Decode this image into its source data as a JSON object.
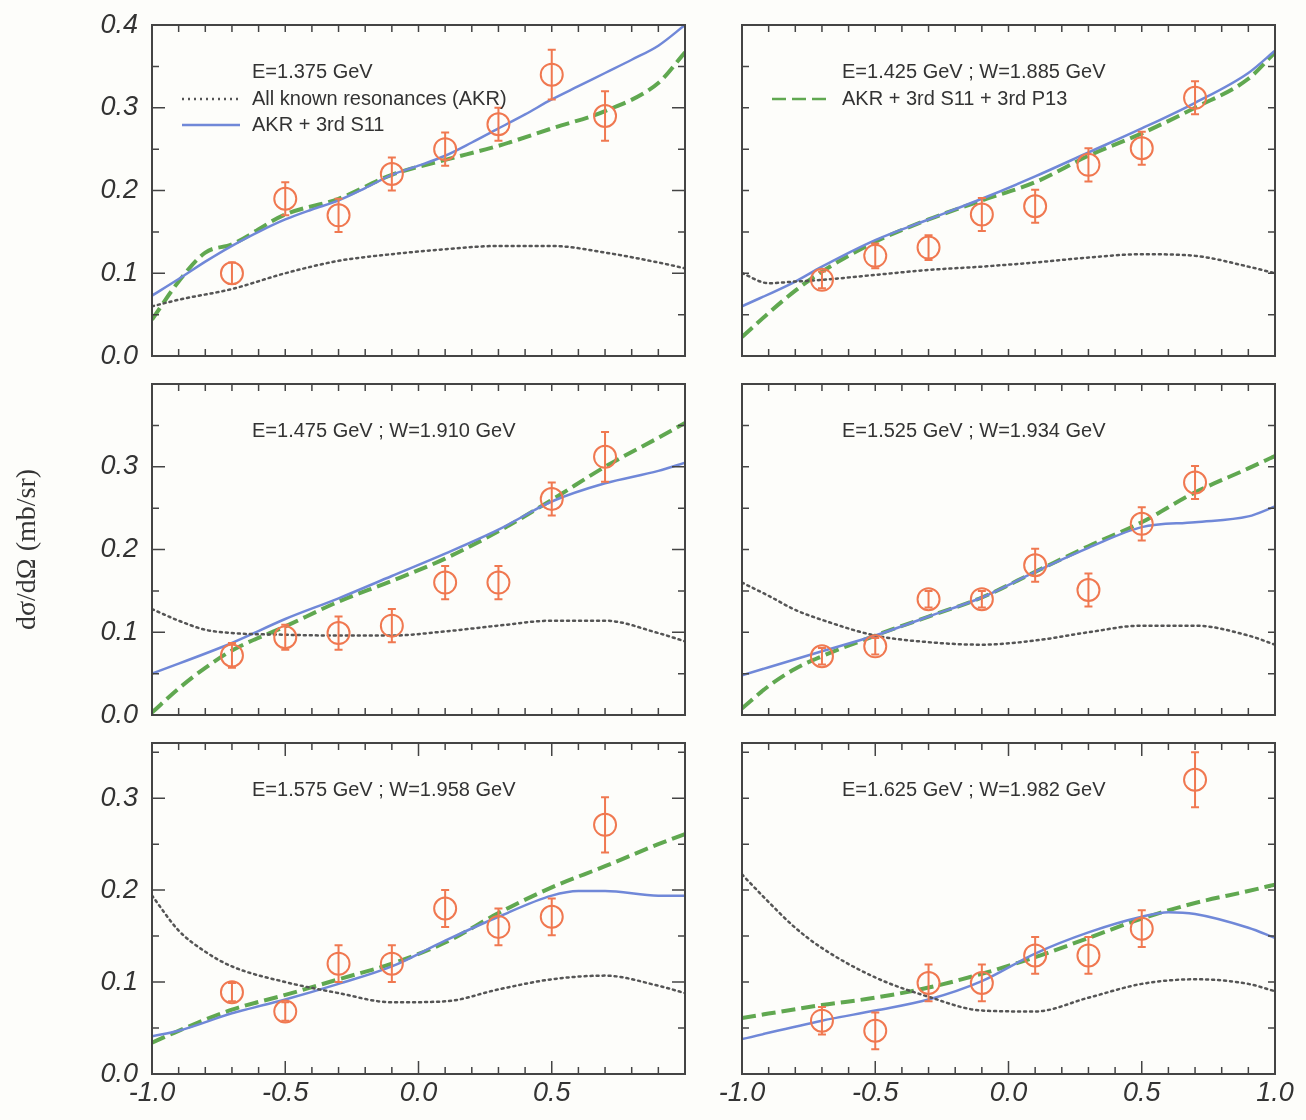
{
  "chart_data": [
    {
      "type": "line",
      "title": "E=1.375 GeV",
      "legend": "top left",
      "tick_labels": "y",
      "xlim": [
        -1,
        1
      ],
      "ylim": [
        0,
        0.4
      ],
      "xticks": [
        {
          "value": -1,
          "label": null
        },
        {
          "value": -0.9,
          "label": null
        },
        {
          "value": -0.8,
          "label": null
        },
        {
          "value": -0.7,
          "label": null
        },
        {
          "value": -0.6,
          "label": null
        },
        {
          "value": -0.5,
          "label": null
        },
        {
          "value": -0.4,
          "label": null
        },
        {
          "value": -0.3,
          "label": null
        },
        {
          "value": -0.2,
          "label": null
        },
        {
          "value": -0.1,
          "label": null
        },
        {
          "value": 0,
          "label": null
        },
        {
          "value": 0.1,
          "label": null
        },
        {
          "value": 0.2,
          "label": null
        },
        {
          "value": 0.3,
          "label": null
        },
        {
          "value": 0.4,
          "label": null
        },
        {
          "value": 0.5,
          "label": null
        },
        {
          "value": 0.6,
          "label": null
        },
        {
          "value": 0.7,
          "label": null
        },
        {
          "value": 0.8,
          "label": null
        },
        {
          "value": 0.9,
          "label": null
        },
        {
          "value": 1,
          "label": null
        }
      ],
      "yticks": [
        {
          "value": 0,
          "label": "0.0"
        },
        {
          "value": 0.05,
          "label": null
        },
        0.1,
        {
          "value": 0.15,
          "label": null
        },
        0.2,
        {
          "value": 0.25,
          "label": null
        },
        0.3,
        {
          "value": 0.35,
          "label": null
        },
        0.4
      ],
      "series": [
        {
          "type": "scatter",
          "marker": "circle",
          "color": "#f07850",
          "x": [
            -0.7,
            -0.5,
            -0.3,
            -0.1,
            0.1,
            0.3,
            0.5,
            0.7
          ],
          "values": [
            0.1,
            0.19,
            0.17,
            0.22,
            0.25,
            0.28,
            0.34,
            0.29
          ],
          "errors": [
            0.013,
            0.02,
            0.02,
            0.02,
            0.02,
            0.02,
            0.03,
            0.03
          ]
        },
        {
          "type": "line",
          "name": "All known resonances (AKR)",
          "line_style": "dotted",
          "marker": "none",
          "color": "#555555",
          "x": [
            -1,
            -0.9,
            -0.7,
            -0.5,
            -0.3,
            -0.1,
            0.1,
            0.3,
            0.5,
            0.7,
            0.9,
            1
          ],
          "values": [
            0.06,
            0.068,
            0.081,
            0.1,
            0.115,
            0.123,
            0.129,
            0.133,
            0.133,
            0.125,
            0.113,
            0.106
          ]
        },
        {
          "type": "line",
          "name": "AKR + 3rd S11",
          "line_style": "solid",
          "marker": "none",
          "color": "#7088d8",
          "x": [
            -1,
            -0.9,
            -0.8,
            -0.7,
            -0.6,
            -0.5,
            -0.4,
            -0.3,
            -0.2,
            -0.1,
            0,
            0.1,
            0.2,
            0.3,
            0.4,
            0.5,
            0.6,
            0.7,
            0.8,
            0.9,
            1
          ],
          "values": [
            0.073,
            0.093,
            0.114,
            0.133,
            0.15,
            0.165,
            0.177,
            0.188,
            0.203,
            0.219,
            0.23,
            0.242,
            0.258,
            0.275,
            0.292,
            0.31,
            0.326,
            0.342,
            0.358,
            0.375,
            0.4
          ]
        },
        {
          "type": "line",
          "line_style": "dashed",
          "marker": "none",
          "color": "#60a850",
          "x": [
            -1,
            -0.9,
            -0.8,
            -0.7,
            -0.5,
            -0.3,
            -0.1,
            0.1,
            0.3,
            0.5,
            0.7,
            0.9,
            1
          ],
          "values": [
            0.044,
            0.09,
            0.125,
            0.135,
            0.171,
            0.19,
            0.219,
            0.237,
            0.254,
            0.275,
            0.296,
            0.33,
            0.367
          ]
        }
      ]
    },
    {
      "type": "line",
      "title": "E=1.425 GeV ; W=1.885 GeV",
      "legend": "top left",
      "tick_labels": false,
      "xlim": [
        -1,
        1
      ],
      "ylim": [
        0,
        0.4
      ],
      "xticks": [
        {
          "value": -1,
          "label": null
        },
        {
          "value": -0.9,
          "label": null
        },
        {
          "value": -0.8,
          "label": null
        },
        {
          "value": -0.7,
          "label": null
        },
        {
          "value": -0.6,
          "label": null
        },
        {
          "value": -0.5,
          "label": null
        },
        {
          "value": -0.4,
          "label": null
        },
        {
          "value": -0.3,
          "label": null
        },
        {
          "value": -0.2,
          "label": null
        },
        {
          "value": -0.1,
          "label": null
        },
        {
          "value": 0,
          "label": null
        },
        {
          "value": 0.1,
          "label": null
        },
        {
          "value": 0.2,
          "label": null
        },
        {
          "value": 0.3,
          "label": null
        },
        {
          "value": 0.4,
          "label": null
        },
        {
          "value": 0.5,
          "label": null
        },
        {
          "value": 0.6,
          "label": null
        },
        {
          "value": 0.7,
          "label": null
        },
        {
          "value": 0.8,
          "label": null
        },
        {
          "value": 0.9,
          "label": null
        },
        {
          "value": 1,
          "label": null
        }
      ],
      "yticks": [
        {
          "value": 0,
          "label": null
        },
        {
          "value": 0.05,
          "label": null
        },
        {
          "value": 0.1,
          "label": null
        },
        {
          "value": 0.15,
          "label": null
        },
        {
          "value": 0.2,
          "label": null
        },
        {
          "value": 0.25,
          "label": null
        },
        {
          "value": 0.3,
          "label": null
        },
        {
          "value": 0.35,
          "label": null
        }
      ],
      "series": [
        {
          "type": "scatter",
          "marker": "circle",
          "color": "#f07850",
          "x": [
            -0.7,
            -0.5,
            -0.3,
            -0.1,
            0.1,
            0.3,
            0.5,
            0.7
          ],
          "values": [
            0.092,
            0.121,
            0.131,
            0.171,
            0.181,
            0.231,
            0.251,
            0.312
          ],
          "errors": [
            0.01,
            0.015,
            0.015,
            0.02,
            0.02,
            0.02,
            0.02,
            0.02
          ]
        },
        {
          "type": "line",
          "line_style": "dotted",
          "marker": "none",
          "color": "#555555",
          "x": [
            -1,
            -0.9,
            -0.8,
            -0.7,
            -0.5,
            -0.3,
            -0.1,
            0.1,
            0.3,
            0.5,
            0.7,
            0.9,
            1
          ],
          "values": [
            0.1,
            0.088,
            0.09,
            0.092,
            0.098,
            0.104,
            0.108,
            0.113,
            0.119,
            0.123,
            0.121,
            0.108,
            0.1
          ]
        },
        {
          "type": "line",
          "line_style": "solid",
          "marker": "none",
          "color": "#7088d8",
          "x": [
            -1,
            -0.8,
            -0.7,
            -0.5,
            -0.3,
            -0.1,
            0.1,
            0.3,
            0.5,
            0.7,
            0.9,
            1
          ],
          "values": [
            0.06,
            0.09,
            0.108,
            0.14,
            0.165,
            0.19,
            0.217,
            0.246,
            0.275,
            0.306,
            0.342,
            0.369
          ]
        },
        {
          "type": "line",
          "name": "AKR + 3rd S11 + 3rd P13",
          "line_style": "dashed",
          "marker": "none",
          "color": "#60a850",
          "x": [
            -1,
            -0.9,
            -0.8,
            -0.7,
            -0.5,
            -0.3,
            -0.1,
            0.1,
            0.3,
            0.5,
            0.7,
            0.9,
            1
          ],
          "values": [
            0.023,
            0.052,
            0.079,
            0.102,
            0.138,
            0.165,
            0.188,
            0.21,
            0.242,
            0.269,
            0.3,
            0.335,
            0.367
          ]
        }
      ]
    },
    {
      "type": "line",
      "title": "E=1.475 GeV ; W=1.910 GeV",
      "ylabel": "dσ/dΩ (mb/sr)",
      "tick_labels": "y",
      "xlim": [
        -1,
        1
      ],
      "ylim": [
        0,
        0.4
      ],
      "xticks": [
        {
          "value": -1,
          "label": null
        },
        {
          "value": -0.9,
          "label": null
        },
        {
          "value": -0.8,
          "label": null
        },
        {
          "value": -0.7,
          "label": null
        },
        {
          "value": -0.6,
          "label": null
        },
        {
          "value": -0.5,
          "label": null
        },
        {
          "value": -0.4,
          "label": null
        },
        {
          "value": -0.3,
          "label": null
        },
        {
          "value": -0.2,
          "label": null
        },
        {
          "value": -0.1,
          "label": null
        },
        {
          "value": 0,
          "label": null
        },
        {
          "value": 0.1,
          "label": null
        },
        {
          "value": 0.2,
          "label": null
        },
        {
          "value": 0.3,
          "label": null
        },
        {
          "value": 0.4,
          "label": null
        },
        {
          "value": 0.5,
          "label": null
        },
        {
          "value": 0.6,
          "label": null
        },
        {
          "value": 0.7,
          "label": null
        },
        {
          "value": 0.8,
          "label": null
        },
        {
          "value": 0.9,
          "label": null
        },
        {
          "value": 1,
          "label": null
        }
      ],
      "yticks": [
        {
          "value": 0,
          "label": "0.0"
        },
        {
          "value": 0.05,
          "label": null
        },
        0.1,
        {
          "value": 0.15,
          "label": null
        },
        0.2,
        {
          "value": 0.25,
          "label": null
        },
        0.3,
        {
          "value": 0.35,
          "label": null
        }
      ],
      "series": [
        {
          "type": "scatter",
          "marker": "circle",
          "color": "#f07850",
          "x": [
            -0.7,
            -0.5,
            -0.3,
            -0.1,
            0.1,
            0.3,
            0.5,
            0.7
          ],
          "values": [
            0.072,
            0.094,
            0.099,
            0.108,
            0.16,
            0.16,
            0.261,
            0.312
          ],
          "errors": [
            0.015,
            0.015,
            0.02,
            0.02,
            0.02,
            0.02,
            0.02,
            0.03
          ]
        },
        {
          "type": "line",
          "line_style": "dotted",
          "marker": "none",
          "color": "#555555",
          "x": [
            -1,
            -0.9,
            -0.8,
            -0.7,
            -0.5,
            -0.3,
            -0.1,
            0.1,
            0.3,
            0.5,
            0.7,
            0.9,
            1
          ],
          "values": [
            0.128,
            0.114,
            0.103,
            0.099,
            0.097,
            0.096,
            0.096,
            0.101,
            0.108,
            0.114,
            0.114,
            0.099,
            0.089
          ]
        },
        {
          "type": "line",
          "line_style": "solid",
          "marker": "none",
          "color": "#7088d8",
          "x": [
            -1,
            -0.7,
            -0.5,
            -0.3,
            -0.1,
            0.1,
            0.3,
            0.5,
            0.7,
            0.9,
            1
          ],
          "values": [
            0.05,
            0.087,
            0.116,
            0.141,
            0.168,
            0.195,
            0.224,
            0.258,
            0.28,
            0.295,
            0.305
          ]
        },
        {
          "type": "line",
          "line_style": "dashed",
          "marker": "none",
          "color": "#60a850",
          "x": [
            -1,
            -0.9,
            -0.8,
            -0.7,
            -0.5,
            -0.3,
            -0.1,
            0.1,
            0.3,
            0.5,
            0.7,
            0.9,
            1
          ],
          "values": [
            0.003,
            0.032,
            0.057,
            0.078,
            0.107,
            0.137,
            0.162,
            0.189,
            0.222,
            0.26,
            0.3,
            0.335,
            0.353
          ]
        }
      ]
    },
    {
      "type": "line",
      "title": "E=1.525 GeV ; W=1.934 GeV",
      "tick_labels": false,
      "xlim": [
        -1,
        1
      ],
      "ylim": [
        0,
        0.4
      ],
      "xticks": [
        {
          "value": -1,
          "label": null
        },
        {
          "value": -0.9,
          "label": null
        },
        {
          "value": -0.8,
          "label": null
        },
        {
          "value": -0.7,
          "label": null
        },
        {
          "value": -0.6,
          "label": null
        },
        {
          "value": -0.5,
          "label": null
        },
        {
          "value": -0.4,
          "label": null
        },
        {
          "value": -0.3,
          "label": null
        },
        {
          "value": -0.2,
          "label": null
        },
        {
          "value": -0.1,
          "label": null
        },
        {
          "value": 0,
          "label": null
        },
        {
          "value": 0.1,
          "label": null
        },
        {
          "value": 0.2,
          "label": null
        },
        {
          "value": 0.3,
          "label": null
        },
        {
          "value": 0.4,
          "label": null
        },
        {
          "value": 0.5,
          "label": null
        },
        {
          "value": 0.6,
          "label": null
        },
        {
          "value": 0.7,
          "label": null
        },
        {
          "value": 0.8,
          "label": null
        },
        {
          "value": 0.9,
          "label": null
        },
        {
          "value": 1,
          "label": null
        }
      ],
      "yticks": [
        {
          "value": 0,
          "label": null
        },
        {
          "value": 0.05,
          "label": null
        },
        {
          "value": 0.1,
          "label": null
        },
        {
          "value": 0.15,
          "label": null
        },
        {
          "value": 0.2,
          "label": null
        },
        {
          "value": 0.25,
          "label": null
        },
        {
          "value": 0.3,
          "label": null
        },
        {
          "value": 0.35,
          "label": null
        }
      ],
      "series": [
        {
          "type": "scatter",
          "marker": "circle",
          "color": "#f07850",
          "x": [
            -0.7,
            -0.5,
            -0.3,
            -0.1,
            0.1,
            0.3,
            0.5,
            0.7
          ],
          "values": [
            0.071,
            0.083,
            0.14,
            0.14,
            0.181,
            0.151,
            0.231,
            0.281
          ],
          "errors": [
            0.01,
            0.01,
            0.01,
            0.01,
            0.02,
            0.02,
            0.02,
            0.02
          ]
        },
        {
          "type": "line",
          "line_style": "dotted",
          "marker": "none",
          "color": "#555555",
          "x": [
            -1,
            -0.9,
            -0.8,
            -0.7,
            -0.5,
            -0.3,
            -0.1,
            0.1,
            0.3,
            0.5,
            0.7,
            0.9,
            1
          ],
          "values": [
            0.16,
            0.144,
            0.127,
            0.115,
            0.096,
            0.088,
            0.085,
            0.09,
            0.1,
            0.108,
            0.108,
            0.096,
            0.085
          ]
        },
        {
          "type": "line",
          "line_style": "solid",
          "marker": "none",
          "color": "#7088d8",
          "x": [
            -1,
            -0.7,
            -0.5,
            -0.3,
            -0.1,
            0.1,
            0.3,
            0.5,
            0.7,
            0.9,
            1
          ],
          "values": [
            0.048,
            0.077,
            0.096,
            0.119,
            0.142,
            0.173,
            0.202,
            0.227,
            0.233,
            0.24,
            0.252
          ]
        },
        {
          "type": "line",
          "line_style": "dashed",
          "marker": "none",
          "color": "#60a850",
          "x": [
            -1,
            -0.9,
            -0.8,
            -0.7,
            -0.5,
            -0.3,
            -0.1,
            0.1,
            0.3,
            0.5,
            0.7,
            0.9,
            1
          ],
          "values": [
            0.008,
            0.035,
            0.056,
            0.071,
            0.096,
            0.119,
            0.142,
            0.173,
            0.204,
            0.233,
            0.269,
            0.298,
            0.313
          ]
        }
      ]
    },
    {
      "type": "line",
      "title": "E=1.575 GeV ; W=1.958 GeV",
      "xlim": [
        -1,
        1
      ],
      "ylim": [
        0,
        0.36
      ],
      "xticks": [
        {
          "value": -1,
          "label": "-1.0"
        },
        {
          "value": -0.9,
          "label": null
        },
        {
          "value": -0.8,
          "label": null
        },
        {
          "value": -0.7,
          "label": null
        },
        {
          "value": -0.6,
          "label": null
        },
        {
          "value": -0.5,
          "label": "-0.5"
        },
        {
          "value": -0.4,
          "label": null
        },
        {
          "value": -0.3,
          "label": null
        },
        {
          "value": -0.2,
          "label": null
        },
        {
          "value": -0.1,
          "label": null
        },
        {
          "value": 0,
          "label": "0.0"
        },
        {
          "value": 0.1,
          "label": null
        },
        {
          "value": 0.2,
          "label": null
        },
        {
          "value": 0.3,
          "label": null
        },
        {
          "value": 0.4,
          "label": null
        },
        {
          "value": 0.5,
          "label": "0.5"
        },
        {
          "value": 0.6,
          "label": null
        },
        {
          "value": 0.7,
          "label": null
        },
        {
          "value": 0.8,
          "label": null
        },
        {
          "value": 0.9,
          "label": null
        },
        {
          "value": 1,
          "label": null
        }
      ],
      "yticks": [
        {
          "value": 0,
          "label": "0.0"
        },
        {
          "value": 0.05,
          "label": null
        },
        {
          "value": 0.1,
          "label": "0.1"
        },
        {
          "value": 0.15,
          "label": null
        },
        {
          "value": 0.2,
          "label": "0.2"
        },
        {
          "value": 0.25,
          "label": null
        },
        {
          "value": 0.3,
          "label": "0.3"
        },
        {
          "value": 0.35,
          "label": null
        }
      ],
      "series": [
        {
          "type": "scatter",
          "marker": "circle",
          "color": "#f07850",
          "x": [
            -0.7,
            -0.5,
            -0.3,
            -0.1,
            0.1,
            0.3,
            0.5,
            0.7
          ],
          "values": [
            0.089,
            0.068,
            0.12,
            0.12,
            0.18,
            0.16,
            0.171,
            0.271
          ],
          "errors": [
            0.01,
            0.01,
            0.02,
            0.02,
            0.02,
            0.02,
            0.02,
            0.03
          ]
        },
        {
          "type": "line",
          "line_style": "dotted",
          "marker": "none",
          "color": "#555555",
          "x": [
            -1,
            -0.9,
            -0.8,
            -0.7,
            -0.5,
            -0.3,
            -0.1,
            0.1,
            0.3,
            0.5,
            0.7,
            0.9,
            1
          ],
          "values": [
            0.194,
            0.156,
            0.133,
            0.117,
            0.1,
            0.088,
            0.078,
            0.079,
            0.092,
            0.103,
            0.107,
            0.096,
            0.088
          ]
        },
        {
          "type": "line",
          "line_style": "solid",
          "marker": "none",
          "color": "#7088d8",
          "x": [
            -1,
            -0.9,
            -0.7,
            -0.5,
            -0.3,
            -0.1,
            0.1,
            0.3,
            0.5,
            0.6,
            0.7,
            0.9,
            1
          ],
          "values": [
            0.041,
            0.047,
            0.066,
            0.081,
            0.098,
            0.117,
            0.145,
            0.171,
            0.194,
            0.199,
            0.199,
            0.194,
            0.194
          ]
        },
        {
          "type": "line",
          "line_style": "dashed",
          "marker": "none",
          "color": "#60a850",
          "x": [
            -1,
            -0.9,
            -0.7,
            -0.5,
            -0.3,
            -0.1,
            0.1,
            0.3,
            0.5,
            0.7,
            0.9,
            1
          ],
          "values": [
            0.034,
            0.047,
            0.07,
            0.086,
            0.103,
            0.12,
            0.143,
            0.175,
            0.203,
            0.226,
            0.25,
            0.261
          ]
        }
      ]
    },
    {
      "type": "line",
      "title": "E=1.625 GeV ; W=1.982 GeV",
      "tick_labels": "x",
      "xlim": [
        -1,
        1
      ],
      "ylim": [
        0,
        0.36
      ],
      "xticks": [
        {
          "value": -1,
          "label": "-1.0"
        },
        {
          "value": -0.9,
          "label": null
        },
        {
          "value": -0.8,
          "label": null
        },
        {
          "value": -0.7,
          "label": null
        },
        {
          "value": -0.6,
          "label": null
        },
        -0.5,
        {
          "value": -0.4,
          "label": null
        },
        {
          "value": -0.3,
          "label": null
        },
        {
          "value": -0.2,
          "label": null
        },
        {
          "value": -0.1,
          "label": null
        },
        {
          "value": 0,
          "label": "0.0"
        },
        {
          "value": 0.1,
          "label": null
        },
        {
          "value": 0.2,
          "label": null
        },
        {
          "value": 0.3,
          "label": null
        },
        {
          "value": 0.4,
          "label": null
        },
        0.5,
        {
          "value": 0.6,
          "label": null
        },
        {
          "value": 0.7,
          "label": null
        },
        {
          "value": 0.8,
          "label": null
        },
        {
          "value": 0.9,
          "label": null
        },
        {
          "value": 1,
          "label": "1.0"
        }
      ],
      "yticks": [
        {
          "value": 0,
          "label": null
        },
        {
          "value": 0.05,
          "label": null
        },
        {
          "value": 0.1,
          "label": null
        },
        {
          "value": 0.15,
          "label": null
        },
        {
          "value": 0.2,
          "label": null
        },
        {
          "value": 0.25,
          "label": null
        },
        {
          "value": 0.3,
          "label": null
        },
        {
          "value": 0.35,
          "label": null
        }
      ],
      "series": [
        {
          "type": "scatter",
          "marker": "circle",
          "color": "#f07850",
          "x": [
            -0.7,
            -0.5,
            -0.3,
            -0.1,
            0.1,
            0.3,
            0.5,
            0.7
          ],
          "values": [
            0.058,
            0.047,
            0.099,
            0.099,
            0.129,
            0.129,
            0.158,
            0.32
          ],
          "errors": [
            0.015,
            0.02,
            0.02,
            0.02,
            0.02,
            0.02,
            0.02,
            0.03
          ]
        },
        {
          "type": "line",
          "line_style": "dotted",
          "marker": "none",
          "color": "#555555",
          "x": [
            -1,
            -0.9,
            -0.8,
            -0.7,
            -0.5,
            -0.3,
            -0.1,
            0.1,
            0.3,
            0.5,
            0.7,
            0.9,
            1
          ],
          "values": [
            0.217,
            0.187,
            0.159,
            0.137,
            0.105,
            0.084,
            0.069,
            0.068,
            0.083,
            0.098,
            0.103,
            0.098,
            0.09
          ]
        },
        {
          "type": "line",
          "line_style": "solid",
          "marker": "none",
          "color": "#7088d8",
          "x": [
            -1,
            -0.7,
            -0.5,
            -0.3,
            -0.1,
            0.1,
            0.3,
            0.5,
            0.6,
            0.7,
            0.9,
            1
          ],
          "values": [
            0.038,
            0.058,
            0.069,
            0.081,
            0.101,
            0.131,
            0.154,
            0.171,
            0.176,
            0.174,
            0.159,
            0.148
          ]
        },
        {
          "type": "line",
          "line_style": "dashed",
          "marker": "none",
          "color": "#60a850",
          "x": [
            -1,
            -0.7,
            -0.5,
            -0.3,
            -0.1,
            0.1,
            0.3,
            0.5,
            0.7,
            0.9,
            1
          ],
          "values": [
            0.061,
            0.075,
            0.083,
            0.094,
            0.109,
            0.127,
            0.148,
            0.169,
            0.186,
            0.199,
            0.206
          ]
        }
      ]
    }
  ]
}
